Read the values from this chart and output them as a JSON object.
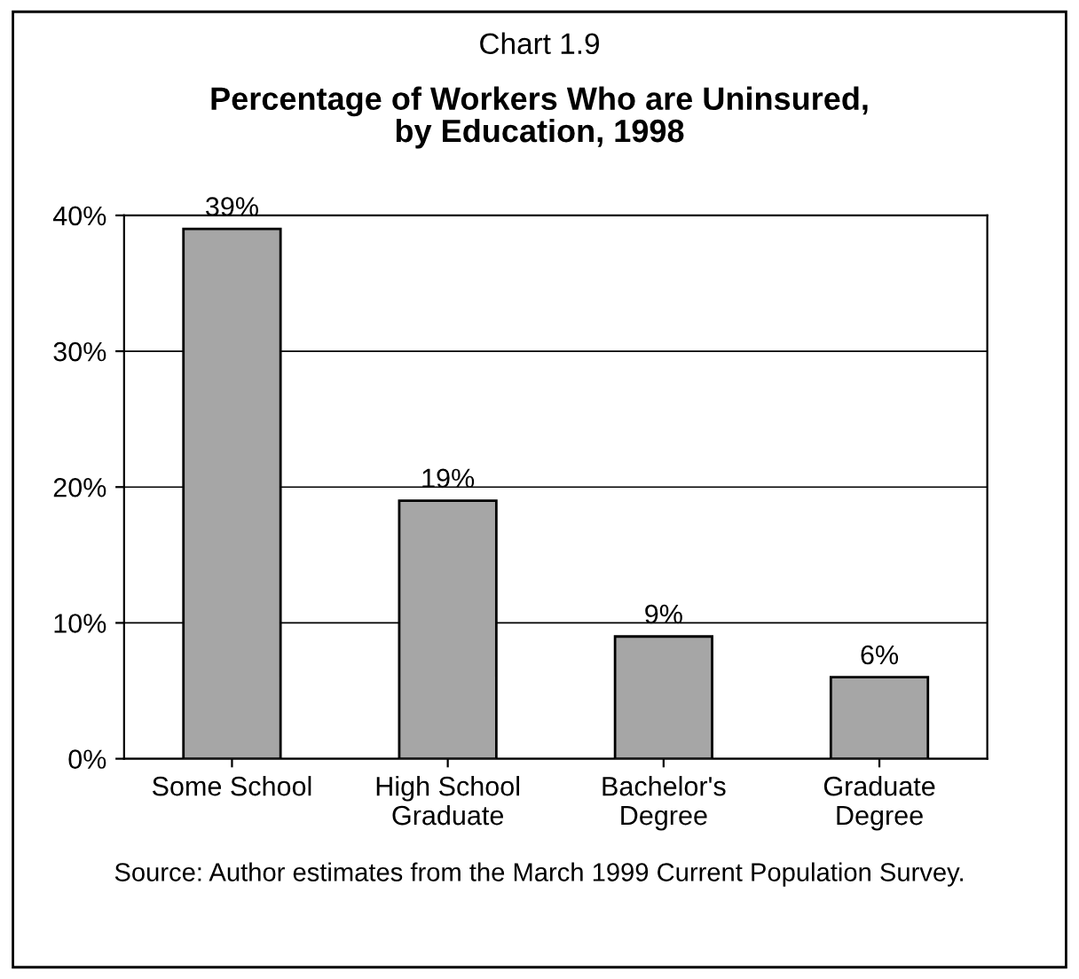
{
  "chart_data": {
    "type": "bar",
    "subtitle": "Chart 1.9",
    "title": "Percentage of Workers Who are Uninsured,\nby Education, 1998",
    "categories": [
      "Some School",
      "High School\nGraduate",
      "Bachelor's\nDegree",
      "Graduate\nDegree"
    ],
    "values": [
      39,
      19,
      9,
      6
    ],
    "color": "#a6a6a6",
    "value_labels": [
      "39%",
      "19%",
      "9%",
      "6%"
    ],
    "ylim": [
      0,
      40
    ],
    "yticks": [
      {
        "value": 0,
        "label": "0%"
      },
      {
        "value": 10,
        "label": "10%"
      },
      {
        "value": 20,
        "label": "20%"
      },
      {
        "value": 30,
        "label": "30%"
      },
      {
        "value": 40,
        "label": "40%"
      }
    ],
    "grid": "y",
    "legend": false,
    "annotations": [
      "Source: Author estimates from the March 1999 Current Population Survey."
    ]
  }
}
